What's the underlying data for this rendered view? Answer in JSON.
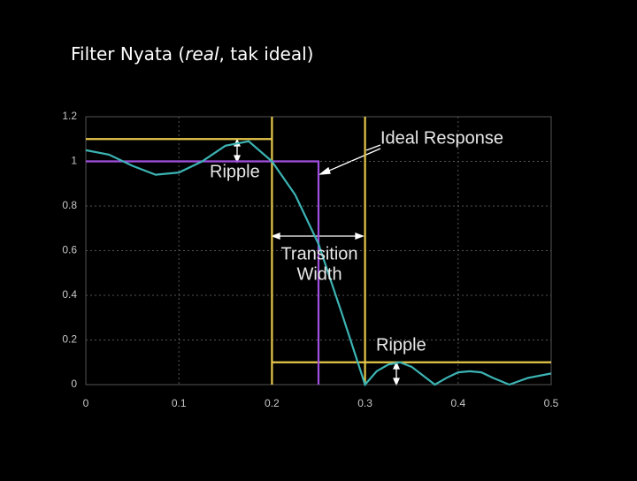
{
  "chart_data": {
    "type": "line",
    "title_parts": [
      "Filter Nyata (",
      "real",
      ", tak ideal)"
    ],
    "xlim": [
      0,
      0.5
    ],
    "ylim": [
      0,
      1.2
    ],
    "xticks": [
      0,
      0.1,
      0.2,
      0.3,
      0.4,
      0.5
    ],
    "yticks": [
      0,
      0.2,
      0.4,
      0.6,
      0.8,
      1,
      1.2
    ],
    "grid": true,
    "series": [
      {
        "color": "#3cb4b4",
        "x": [
          0,
          0.025,
          0.05,
          0.075,
          0.1,
          0.125,
          0.15,
          0.175,
          0.2,
          0.225,
          0.25,
          0.275,
          0.3,
          0.3125,
          0.325,
          0.3375,
          0.35,
          0.3625,
          0.375,
          0.3875,
          0.4,
          0.4125,
          0.425,
          0.4375,
          0.455,
          0.475,
          0.5
        ],
        "values": [
          1.05,
          1.03,
          0.98,
          0.94,
          0.95,
          1.0,
          1.07,
          1.09,
          1.0,
          0.85,
          0.63,
          0.32,
          0.0,
          0.06,
          0.09,
          0.1,
          0.08,
          0.04,
          0.0,
          0.03,
          0.055,
          0.06,
          0.055,
          0.03,
          0.0,
          0.03,
          0.05
        ]
      },
      {
        "color": "#e6c84a",
        "x": [
          0,
          0.2,
          null,
          0.2,
          0.2,
          null,
          0.2,
          0.5,
          null,
          0.3,
          0.3
        ],
        "values": [
          1.1,
          1.1,
          null,
          1.2,
          0,
          null,
          0.1,
          0.1,
          null,
          1.2,
          0
        ]
      },
      {
        "color": "#a050e0",
        "x": [
          0,
          0.25,
          0.25
        ],
        "values": [
          1,
          1,
          0
        ]
      }
    ],
    "annotations": [
      "Ideal Response",
      "Ripple",
      "Transition",
      "Width",
      "Ripple"
    ]
  }
}
